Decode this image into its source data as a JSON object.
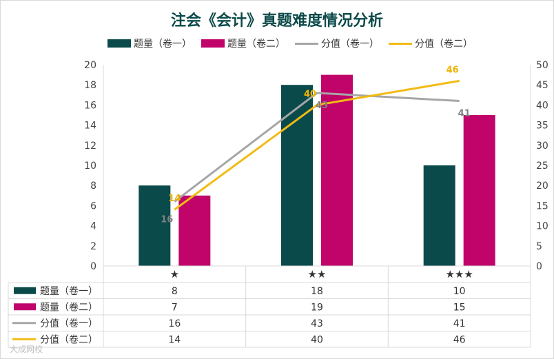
{
  "title": "注会《会计》真题难度情况分析",
  "watermark": "大成网校",
  "colors": {
    "series1": "#0b4a4a",
    "series2": "#c0046a",
    "line1": "#a6a6a6",
    "line2": "#f2bb14",
    "grid": "#d9d9d9"
  },
  "chart_data": {
    "type": "bar+line",
    "categories": [
      "★",
      "★★",
      "★★★"
    ],
    "y_left": {
      "min": 0,
      "max": 20,
      "step": 2
    },
    "y_right": {
      "min": 0,
      "max": 50,
      "step": 5
    },
    "grid": false,
    "legend": "top",
    "data_table": true,
    "series": [
      {
        "name": "题量（卷一）",
        "type": "bar",
        "axis": "left",
        "values": [
          8,
          18,
          10
        ]
      },
      {
        "name": "题量（卷二）",
        "type": "bar",
        "axis": "left",
        "values": [
          7,
          19,
          15
        ]
      },
      {
        "name": "分值（卷一）",
        "type": "line",
        "axis": "right",
        "values": [
          16,
          43,
          41
        ]
      },
      {
        "name": "分值（卷二）",
        "type": "line",
        "axis": "right",
        "values": [
          14,
          40,
          46
        ]
      }
    ]
  }
}
